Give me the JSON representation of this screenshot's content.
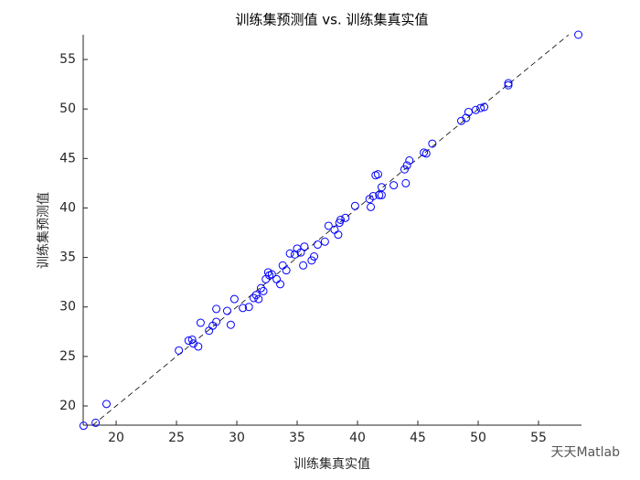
{
  "chart_data": {
    "type": "scatter",
    "title": "训练集预测值 vs. 训练集真实值",
    "x_label": "训练集真实值",
    "y_label": "训练集预测值",
    "watermark": "天天Matlab",
    "xlim": [
      17.27,
      58.56
    ],
    "ylim": [
      18.06,
      57.5
    ],
    "xticks": [
      20,
      25,
      30,
      35,
      40,
      45,
      50,
      55
    ],
    "yticks": [
      20,
      25,
      30,
      35,
      40,
      45,
      50,
      55
    ],
    "diagonal": true,
    "series": [
      {
        "color": "#0000ff",
        "x": [
          17.3,
          18.3,
          19.2,
          25.2,
          26.0,
          26.3,
          26.4,
          26.8,
          27.0,
          27.7,
          28.0,
          28.3,
          28.3,
          29.2,
          29.5,
          29.8,
          30.5,
          31.0,
          31.4,
          31.6,
          31.8,
          32.0,
          32.2,
          32.4,
          32.6,
          32.7,
          32.9,
          33.3,
          33.6,
          33.8,
          34.1,
          34.4,
          34.8,
          35.0,
          35.3,
          35.5,
          35.6,
          36.2,
          36.4,
          36.7,
          37.3,
          37.6,
          38.1,
          38.4,
          38.5,
          38.6,
          39.0,
          39.8,
          41.0,
          41.1,
          41.3,
          41.5,
          41.7,
          41.8,
          42.0,
          42.0,
          43.0,
          43.9,
          44.0,
          44.1,
          44.3,
          45.5,
          45.7,
          46.2,
          48.6,
          49.0,
          49.2,
          49.8,
          50.2,
          50.5,
          52.5,
          52.5,
          58.3
        ],
        "values": [
          18.0,
          18.3,
          20.2,
          25.6,
          26.6,
          26.7,
          26.3,
          26.0,
          28.4,
          27.6,
          28.1,
          28.5,
          29.8,
          29.6,
          28.2,
          30.8,
          29.9,
          30.0,
          30.9,
          31.2,
          30.8,
          31.9,
          31.6,
          32.8,
          33.5,
          33.2,
          33.3,
          32.8,
          32.3,
          34.2,
          33.7,
          35.4,
          35.3,
          35.9,
          35.5,
          34.2,
          36.1,
          34.7,
          35.1,
          36.3,
          36.6,
          38.2,
          37.8,
          37.3,
          38.5,
          38.8,
          39.0,
          40.2,
          40.9,
          40.1,
          41.2,
          43.3,
          43.4,
          41.3,
          42.1,
          41.3,
          42.3,
          43.9,
          42.5,
          44.3,
          44.8,
          45.6,
          45.5,
          46.5,
          48.8,
          49.1,
          49.7,
          49.9,
          50.1,
          50.2,
          52.6,
          52.4,
          57.5
        ]
      }
    ]
  }
}
